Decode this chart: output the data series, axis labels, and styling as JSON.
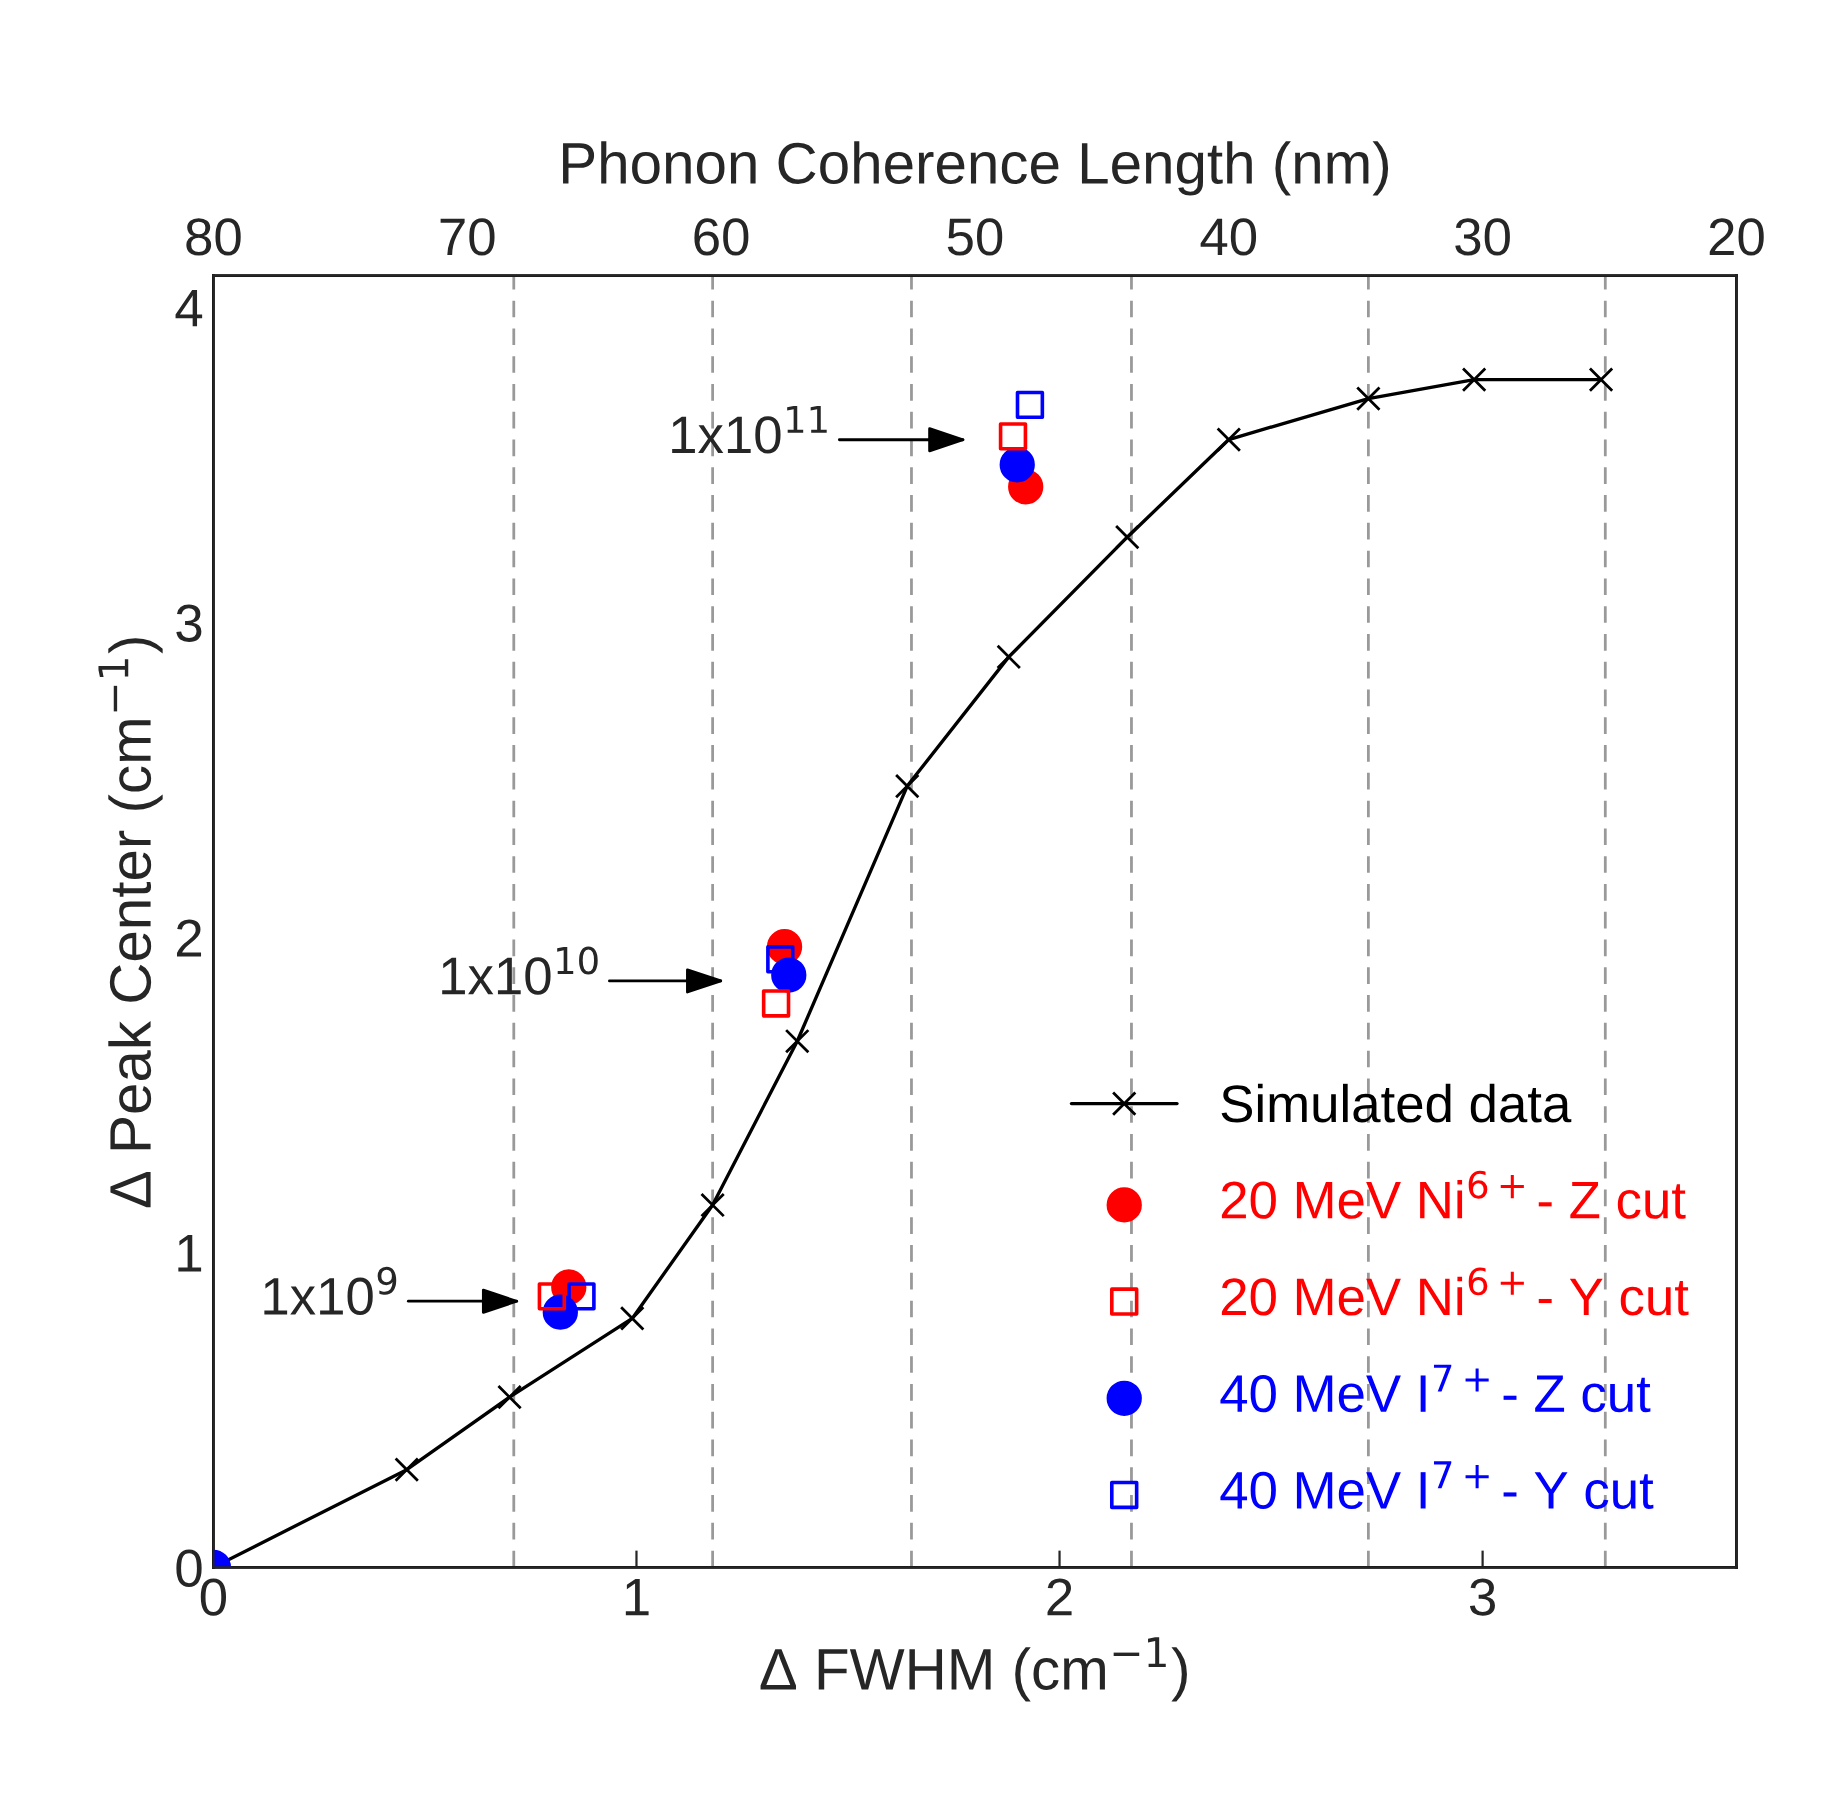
{
  "chart_data": {
    "type": "scatter",
    "xlabel": "Δ FWHM (cm$^{−1}$)",
    "ylabel": "Δ Peak Center (cm$^{−1}$)",
    "x2label": "Phonon Coherence Length (nm)",
    "xlim": [
      0,
      3.6
    ],
    "xticks": [
      0,
      1,
      2,
      3
    ],
    "ylim": [
      0,
      4.1
    ],
    "yticks": [
      0,
      1,
      2,
      3,
      4
    ],
    "x2lim": [
      80,
      20
    ],
    "x2ticks": [
      80,
      70,
      60,
      50,
      40,
      30,
      20
    ],
    "grid": false,
    "legend": "bottom right",
    "series": [
      {
        "name": "Simulated data",
        "type": "line",
        "color": "#000000",
        "marker": "cross",
        "line_style": "solid",
        "x": [
          0,
          0.457,
          0.7,
          0.99,
          1.18,
          1.38,
          1.64,
          1.88,
          2.16,
          2.4,
          2.73,
          2.98,
          3.28
        ],
        "values": [
          0,
          0.31,
          0.54,
          0.79,
          1.15,
          1.67,
          2.48,
          2.89,
          3.27,
          3.58,
          3.71,
          3.77,
          3.77
        ]
      },
      {
        "name": "20 MeV Ni$^{6+}$- Z cut",
        "color": "#ff0000",
        "marker": "circle",
        "x": [
          0.84,
          1.35,
          1.92
        ],
        "values": [
          0.89,
          1.97,
          3.43
        ]
      },
      {
        "name": "20 MeV Ni$^{6+}$- Y cut",
        "color": "#ff0000",
        "marker": "square",
        "x": [
          0.8,
          1.33,
          1.89
        ],
        "values": [
          0.86,
          1.79,
          3.59
        ]
      },
      {
        "name": "40 MeV I$^{7+}$- Z cut",
        "color": "#0000ff",
        "marker": "circle",
        "x": [
          0,
          0.82,
          1.36,
          1.9
        ],
        "values": [
          0,
          0.81,
          1.88,
          3.5
        ]
      },
      {
        "name": "40 MeV I$^{7+}$- Y cut",
        "color": "#0000ff",
        "marker": "square",
        "x": [
          0.87,
          1.34,
          1.93
        ],
        "values": [
          0.86,
          1.93,
          3.69
        ]
      }
    ],
    "ref_lines": [
      {
        "axis": "x",
        "value": 0.71,
        "color": "#999999",
        "line_style": "dashed"
      },
      {
        "axis": "x",
        "value": 1.18,
        "color": "#999999",
        "line_style": "dashed"
      },
      {
        "axis": "x",
        "value": 1.65,
        "color": "#999999",
        "line_style": "dashed"
      },
      {
        "axis": "x",
        "value": 2.17,
        "color": "#999999",
        "line_style": "dashed"
      },
      {
        "axis": "x",
        "value": 2.73,
        "color": "#999999",
        "line_style": "dashed"
      },
      {
        "axis": "x",
        "value": 3.29,
        "color": "#999999",
        "line_style": "dashed"
      }
    ],
    "annotations": [
      "1x10$^{9}$",
      "1x10$^{10}$",
      "1x10$^{11}$"
    ]
  }
}
